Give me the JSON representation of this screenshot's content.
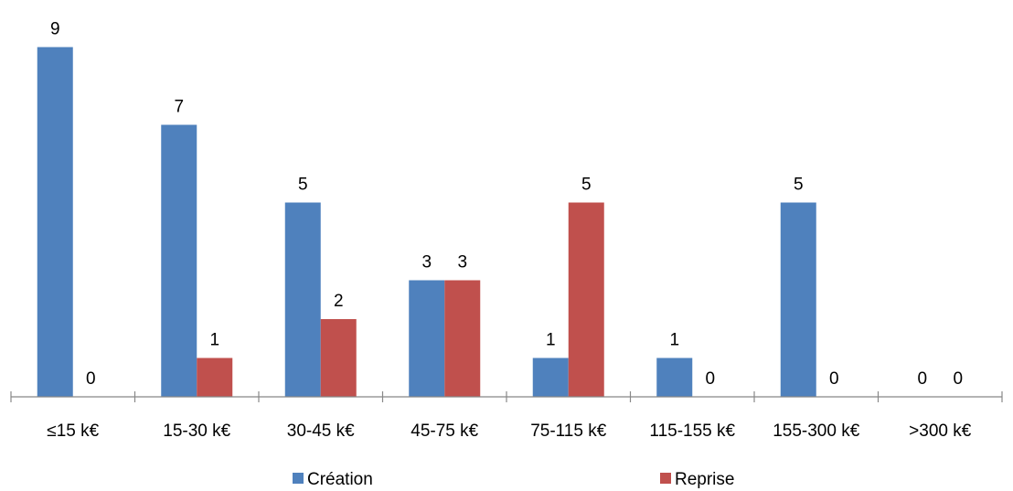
{
  "chart_data": {
    "type": "bar",
    "categories": [
      "≤15 k€",
      "15-30 k€",
      "30-45 k€",
      "45-75 k€",
      "75-115 k€",
      "115-155 k€",
      "155-300 k€",
      ">300 k€"
    ],
    "series": [
      {
        "name": "Création",
        "color": "#4F81BD",
        "values": [
          9,
          7,
          5,
          3,
          1,
          1,
          5,
          0
        ]
      },
      {
        "name": "Reprise",
        "color": "#C0504D",
        "values": [
          0,
          1,
          2,
          3,
          5,
          0,
          0,
          0
        ]
      }
    ],
    "ylim": [
      0,
      9
    ],
    "grid": false,
    "data_labels": true,
    "legend_position": "bottom"
  }
}
